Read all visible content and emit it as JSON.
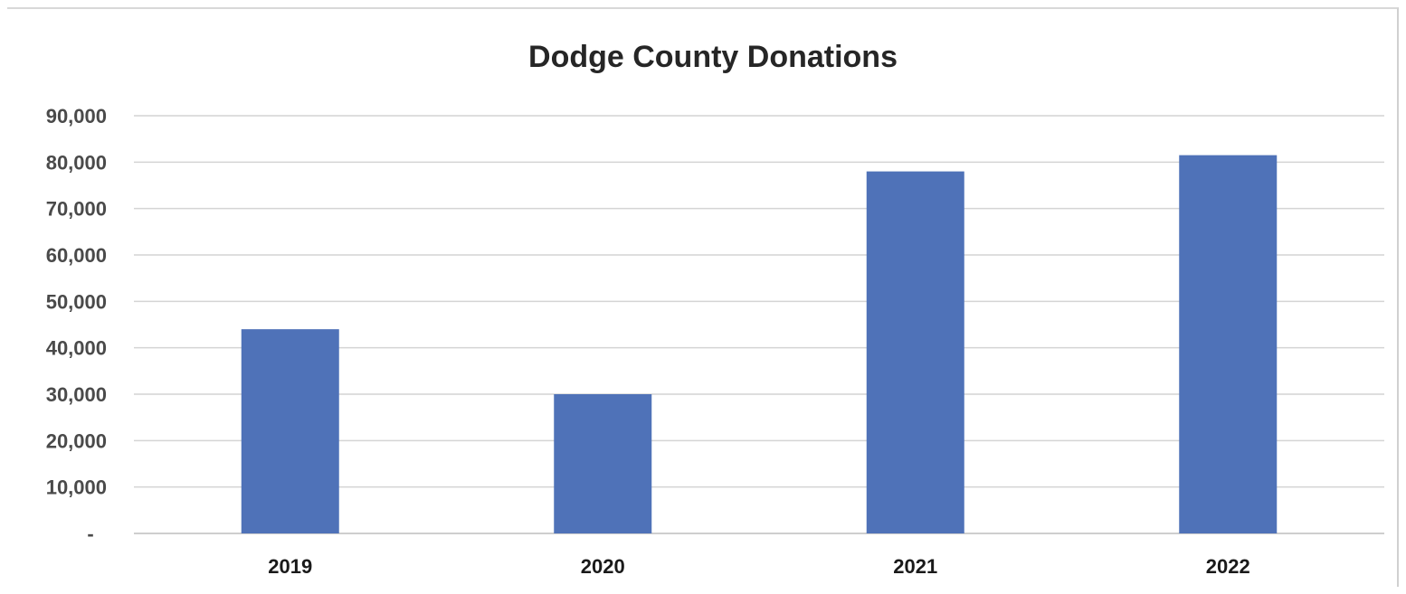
{
  "chart_data": {
    "type": "bar",
    "title": "Dodge County Donations",
    "xlabel": "",
    "ylabel": "",
    "categories": [
      "2019",
      "2020",
      "2021",
      "2022"
    ],
    "values": [
      44000,
      30000,
      78000,
      81500
    ],
    "ylim": [
      0,
      90000
    ],
    "yticks": [
      0,
      10000,
      20000,
      30000,
      40000,
      50000,
      60000,
      70000,
      80000,
      90000
    ],
    "ytick_labels": [
      "-",
      "10,000",
      "20,000",
      "30,000",
      "40,000",
      "50,000",
      "60,000",
      "70,000",
      "80,000",
      "90,000"
    ],
    "grid": true,
    "legend": "none",
    "bar_color": "#4f72b8"
  }
}
